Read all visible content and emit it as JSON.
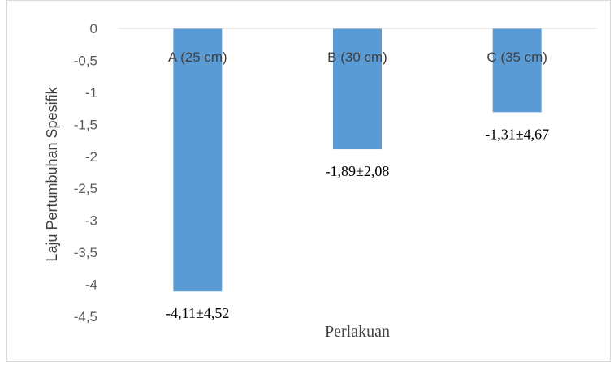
{
  "chart_data": {
    "type": "bar",
    "categories": [
      "A (25 cm)",
      "B (30 cm)",
      "C (35 cm)"
    ],
    "values": [
      -4.11,
      -1.89,
      -1.31
    ],
    "data_labels": [
      "-4,11±4,52",
      "-1,89±2,08",
      "-1,31±4,67"
    ],
    "xlabel": "Perlakuan",
    "ylabel": "Laju Pertumbuhan Spesifik",
    "ylim": [
      -4.5,
      0
    ],
    "yticks": [
      0,
      -0.5,
      -1,
      -1.5,
      -2,
      -2.5,
      -3,
      -3.5,
      -4,
      -4.5
    ],
    "ytick_labels": [
      "0",
      "-0,5",
      "-1",
      "-1,5",
      "-2",
      "-2,5",
      "-3",
      "-3,5",
      "-4",
      "-4,5"
    ],
    "bar_color": "#5b9bd5",
    "grid": false
  }
}
